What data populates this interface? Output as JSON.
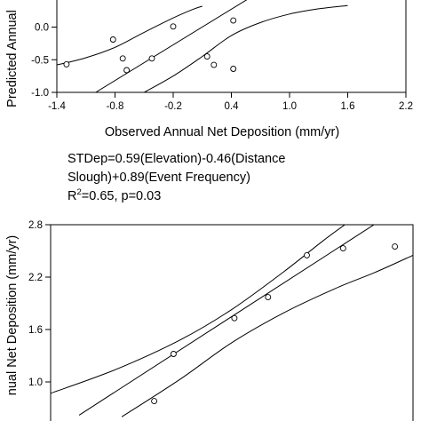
{
  "chart_data": [
    {
      "type": "scatter",
      "title": "",
      "xlabel": "Observed Annual Net Deposition (mm/yr)",
      "ylabel": "Predicted Annual",
      "xlim": [
        -1.4,
        2.2
      ],
      "ylim": [
        -1.0,
        0.3
      ],
      "xticks": [
        -1.4,
        -0.8,
        -0.2,
        0.4,
        1.0,
        1.6,
        2.2
      ],
      "xtick_labels": [
        "-1.4",
        "-0.8",
        "-0.2",
        "0.4",
        "1.0",
        "1.6",
        "2.2"
      ],
      "yticks": [
        0.0,
        -0.5,
        -1.0
      ],
      "ytick_labels": [
        "0.0",
        "-0.5",
        "-1.0"
      ],
      "grid": false,
      "points": [
        {
          "x": -1.3,
          "y": -0.57
        },
        {
          "x": -0.82,
          "y": -0.19
        },
        {
          "x": -0.72,
          "y": -0.48
        },
        {
          "x": -0.68,
          "y": -0.66
        },
        {
          "x": -0.42,
          "y": -0.48
        },
        {
          "x": -0.2,
          "y": 0.01
        },
        {
          "x": 0.15,
          "y": -0.45
        },
        {
          "x": 0.22,
          "y": -0.58
        },
        {
          "x": 0.42,
          "y": 0.1
        },
        {
          "x": 0.42,
          "y": -0.64
        }
      ],
      "fit_line": [
        [
          -1.0,
          -1.0
        ],
        [
          1.0,
          0.82
        ]
      ],
      "ci_upper": [
        [
          -1.4,
          -0.58
        ],
        [
          -1.1,
          -0.47
        ],
        [
          -0.8,
          -0.31
        ],
        [
          -0.5,
          -0.08
        ],
        [
          -0.2,
          0.14
        ],
        [
          0.0,
          0.27
        ],
        [
          0.1,
          0.32
        ]
      ],
      "ci_lower": [
        [
          -0.5,
          -1.0
        ],
        [
          -0.2,
          -0.75
        ],
        [
          0.1,
          -0.45
        ],
        [
          0.4,
          -0.13
        ],
        [
          0.7,
          0.07
        ],
        [
          1.0,
          0.2
        ],
        [
          1.3,
          0.28
        ],
        [
          1.6,
          0.33
        ]
      ]
    },
    {
      "type": "scatter",
      "title": "",
      "xlabel": "",
      "ylabel": "nual Net Deposition (mm/yr)",
      "xlim": [
        0.0,
        2.8
      ],
      "ylim": [
        0.6,
        2.8
      ],
      "yticks": [
        2.8,
        2.2,
        1.6,
        1.0
      ],
      "ytick_labels": [
        "2.8",
        "2.2",
        "1.6",
        "1.0"
      ],
      "grid": false,
      "points": [
        {
          "x": 0.8,
          "y": 0.78
        },
        {
          "x": 0.95,
          "y": 1.32
        },
        {
          "x": 1.42,
          "y": 1.73
        },
        {
          "x": 1.68,
          "y": 1.97
        },
        {
          "x": 1.98,
          "y": 2.45
        },
        {
          "x": 2.26,
          "y": 2.53
        },
        {
          "x": 2.66,
          "y": 2.55
        }
      ],
      "fit_line": [
        [
          0.22,
          0.62
        ],
        [
          2.55,
          2.85
        ]
      ],
      "ci_upper": [
        [
          0.0,
          0.87
        ],
        [
          0.5,
          1.14
        ],
        [
          1.0,
          1.48
        ],
        [
          1.4,
          1.83
        ],
        [
          1.8,
          2.26
        ],
        [
          2.1,
          2.61
        ],
        [
          2.32,
          2.85
        ]
      ],
      "ci_lower": [
        [
          0.55,
          0.6
        ],
        [
          1.0,
          1.03
        ],
        [
          1.4,
          1.45
        ],
        [
          1.8,
          1.79
        ],
        [
          2.2,
          2.07
        ],
        [
          2.5,
          2.25
        ],
        [
          2.8,
          2.45
        ]
      ]
    }
  ],
  "equation": {
    "line1": "STDep=0.59(Elevation)-0.46(Distance",
    "line2": "Slough)+0.89(Event Frequency)",
    "line3_prefix": "R",
    "line3_sup": "2",
    "line3_rest": "=0.65, p=0.03"
  }
}
